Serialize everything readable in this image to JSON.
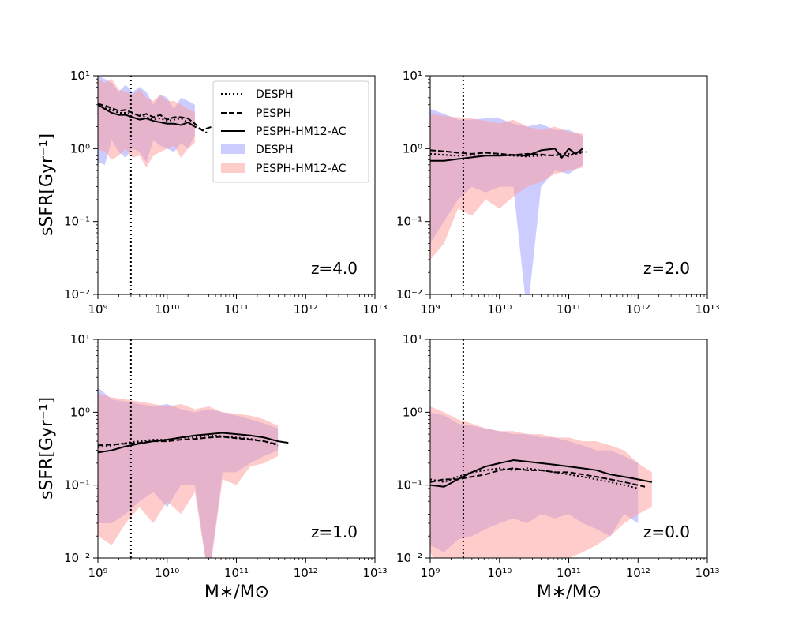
{
  "figure": {
    "ylabel": "sSFR[Gyr⁻¹]",
    "xlabel": "M∗/M⊙",
    "y_tick_labels": [
      "10¹",
      "10⁰",
      "10⁻¹",
      "10⁻²"
    ],
    "x_tick_labels": [
      "10⁹",
      "10¹⁰",
      "10¹¹",
      "10¹²",
      "10¹³"
    ],
    "legend": {
      "lines": [
        {
          "label": "DESPH",
          "style": "dotted"
        },
        {
          "label": "PESPH",
          "style": "dashed"
        },
        {
          "label": "PESPH-HM12-AC",
          "style": "solid"
        }
      ],
      "bands": [
        {
          "label": "DESPH",
          "color": "#9999ff"
        },
        {
          "label": "PESPH-HM12-AC",
          "color": "#ff9999"
        }
      ]
    },
    "colors": {
      "band_desph": "#9999ff",
      "band_pesph": "#ff9999",
      "line": "#000000"
    }
  },
  "chart_data": [
    {
      "type": "line",
      "panel_label": "z=4.0",
      "xscale": "log",
      "yscale": "log",
      "xlim": [
        1000000000.0,
        10000000000000.0
      ],
      "ylim": [
        0.01,
        10
      ],
      "vline_x": 3000000000.0,
      "legend": "top-right",
      "series": [
        {
          "name": "DESPH",
          "style": "dotted",
          "x": [
            9.0,
            9.1,
            9.2,
            9.3,
            9.4,
            9.5,
            9.6,
            9.7,
            9.8,
            9.9,
            10.0,
            10.1,
            10.2,
            10.3,
            10.4,
            10.5,
            10.6
          ],
          "y": [
            4.0,
            3.6,
            3.4,
            3.1,
            3.1,
            3.0,
            2.9,
            2.7,
            2.5,
            2.6,
            2.4,
            2.5,
            2.6,
            2.3,
            2.0,
            1.8,
            1.6
          ]
        },
        {
          "name": "PESPH",
          "style": "dashed",
          "x": [
            9.0,
            9.1,
            9.2,
            9.3,
            9.4,
            9.5,
            9.6,
            9.7,
            9.8,
            9.9,
            10.0,
            10.1,
            10.2,
            10.3,
            10.4,
            10.5,
            10.65
          ],
          "y": [
            4.1,
            3.9,
            3.6,
            3.3,
            3.4,
            3.1,
            2.8,
            3.0,
            2.7,
            2.9,
            2.5,
            2.7,
            2.7,
            2.6,
            2.2,
            1.8,
            2.0
          ]
        },
        {
          "name": "PESPH-HM12-AC",
          "style": "solid",
          "x": [
            9.0,
            9.1,
            9.2,
            9.3,
            9.4,
            9.5,
            9.6,
            9.7,
            9.8,
            9.9,
            10.0,
            10.1,
            10.2,
            10.3,
            10.4
          ],
          "y": [
            4.0,
            3.5,
            3.1,
            2.9,
            2.9,
            2.7,
            2.5,
            2.6,
            2.4,
            2.3,
            2.2,
            2.2,
            2.1,
            2.3,
            2.0
          ]
        },
        {
          "name": "DESPH band",
          "kind": "band",
          "x": [
            9.0,
            9.1,
            9.2,
            9.3,
            9.4,
            9.5,
            9.6,
            9.7,
            9.8,
            9.9,
            10.0,
            10.1,
            10.2,
            10.3,
            10.4
          ],
          "lower": [
            0.65,
            0.6,
            1.3,
            0.9,
            0.75,
            1.0,
            0.9,
            0.65,
            1.3,
            1.1,
            1.0,
            0.9,
            1.2,
            1.0,
            1.5
          ],
          "upper": [
            10.0,
            9.0,
            8.0,
            6.0,
            7.5,
            6.0,
            7.0,
            6.0,
            4.0,
            5.5,
            5.0,
            3.5,
            5.0,
            4.5,
            4.0
          ]
        },
        {
          "name": "PESPH-HM12-AC band",
          "kind": "band",
          "x": [
            9.0,
            9.1,
            9.2,
            9.3,
            9.4,
            9.5,
            9.6,
            9.7,
            9.8,
            9.9,
            10.0,
            10.1,
            10.2,
            10.3,
            10.4
          ],
          "lower": [
            1.0,
            0.9,
            0.7,
            0.8,
            1.0,
            0.75,
            0.8,
            0.55,
            0.8,
            0.9,
            1.0,
            1.1,
            0.75,
            1.0,
            1.2
          ],
          "upper": [
            9.0,
            8.0,
            9.0,
            6.5,
            6.0,
            5.5,
            6.5,
            5.0,
            4.5,
            5.5,
            4.5,
            4.5,
            4.0,
            3.5,
            3.2
          ]
        }
      ]
    },
    {
      "type": "line",
      "panel_label": "z=2.0",
      "xscale": "log",
      "yscale": "log",
      "xlim": [
        1000000000.0,
        10000000000000.0
      ],
      "ylim": [
        0.01,
        10
      ],
      "vline_x": 3000000000.0,
      "series": [
        {
          "name": "DESPH",
          "style": "dotted",
          "x": [
            9.0,
            9.2,
            9.4,
            9.6,
            9.8,
            10.0,
            10.2,
            10.4,
            10.6,
            10.8,
            10.9,
            11.0,
            11.1,
            11.2
          ],
          "y": [
            0.85,
            0.82,
            0.8,
            0.82,
            0.8,
            0.82,
            0.8,
            0.78,
            0.8,
            0.82,
            0.8,
            0.85,
            0.85,
            0.88
          ]
        },
        {
          "name": "PESPH",
          "style": "dashed",
          "x": [
            9.0,
            9.2,
            9.4,
            9.6,
            9.8,
            10.0,
            10.2,
            10.4,
            10.6,
            10.8,
            10.9,
            11.0,
            11.1,
            11.25
          ],
          "y": [
            0.95,
            0.92,
            0.88,
            0.85,
            0.88,
            0.85,
            0.82,
            0.85,
            0.83,
            0.8,
            0.85,
            0.78,
            0.9,
            0.9
          ]
        },
        {
          "name": "PESPH-HM12-AC",
          "style": "solid",
          "x": [
            9.0,
            9.2,
            9.4,
            9.6,
            9.8,
            10.0,
            10.2,
            10.4,
            10.6,
            10.8,
            10.9,
            11.0,
            11.1,
            11.2
          ],
          "y": [
            0.68,
            0.68,
            0.72,
            0.76,
            0.8,
            0.8,
            0.82,
            0.8,
            0.95,
            1.0,
            0.75,
            1.0,
            0.85,
            1.0
          ]
        },
        {
          "name": "DESPH band",
          "kind": "band",
          "x": [
            9.0,
            9.2,
            9.4,
            9.6,
            9.8,
            10.0,
            10.2,
            10.4,
            10.6,
            10.8,
            11.0,
            11.2
          ],
          "lower": [
            0.05,
            0.1,
            0.2,
            0.3,
            0.25,
            0.3,
            0.3,
            0.005,
            0.3,
            0.5,
            0.45,
            0.6
          ],
          "upper": [
            3.5,
            3.0,
            2.5,
            2.5,
            2.6,
            2.6,
            2.2,
            2.0,
            2.2,
            1.8,
            1.8,
            1.5
          ]
        },
        {
          "name": "PESPH-HM12-AC band",
          "kind": "band",
          "x": [
            9.0,
            9.2,
            9.4,
            9.6,
            9.8,
            10.0,
            10.2,
            10.4,
            10.6,
            10.8,
            11.0,
            11.2
          ],
          "lower": [
            0.03,
            0.05,
            0.15,
            0.12,
            0.2,
            0.15,
            0.22,
            0.3,
            0.35,
            0.45,
            0.5,
            0.55
          ],
          "upper": [
            3.0,
            2.8,
            2.7,
            2.6,
            2.4,
            2.2,
            2.5,
            2.0,
            1.8,
            2.0,
            1.7,
            1.6
          ]
        }
      ]
    },
    {
      "type": "line",
      "panel_label": "z=1.0",
      "xscale": "log",
      "yscale": "log",
      "xlim": [
        1000000000.0,
        10000000000000.0
      ],
      "ylim": [
        0.01,
        10
      ],
      "vline_x": 3000000000.0,
      "series": [
        {
          "name": "DESPH",
          "style": "dotted",
          "x": [
            9.0,
            9.2,
            9.4,
            9.6,
            9.8,
            10.0,
            10.2,
            10.4,
            10.6,
            10.8,
            11.0,
            11.2,
            11.4,
            11.6
          ],
          "y": [
            0.33,
            0.35,
            0.38,
            0.4,
            0.42,
            0.42,
            0.45,
            0.45,
            0.48,
            0.47,
            0.45,
            0.43,
            0.4,
            0.35
          ]
        },
        {
          "name": "PESPH",
          "style": "dashed",
          "x": [
            9.0,
            9.2,
            9.4,
            9.6,
            9.8,
            10.0,
            10.2,
            10.4,
            10.6,
            10.8,
            11.0,
            11.2,
            11.4,
            11.6
          ],
          "y": [
            0.35,
            0.36,
            0.37,
            0.38,
            0.4,
            0.4,
            0.42,
            0.43,
            0.45,
            0.46,
            0.44,
            0.42,
            0.4,
            0.36
          ]
        },
        {
          "name": "PESPH-HM12-AC",
          "style": "solid",
          "x": [
            9.0,
            9.2,
            9.4,
            9.6,
            9.8,
            10.0,
            10.2,
            10.4,
            10.6,
            10.8,
            11.0,
            11.2,
            11.4,
            11.6,
            11.75
          ],
          "y": [
            0.28,
            0.3,
            0.34,
            0.37,
            0.4,
            0.42,
            0.45,
            0.48,
            0.5,
            0.52,
            0.5,
            0.48,
            0.45,
            0.4,
            0.38
          ]
        },
        {
          "name": "DESPH band",
          "kind": "band",
          "x": [
            9.0,
            9.2,
            9.4,
            9.6,
            9.8,
            10.0,
            10.2,
            10.4,
            10.6,
            10.8,
            11.0,
            11.2,
            11.4,
            11.6
          ],
          "lower": [
            0.03,
            0.03,
            0.04,
            0.06,
            0.08,
            0.05,
            0.1,
            0.1,
            0.005,
            0.15,
            0.15,
            0.2,
            0.25,
            0.3
          ],
          "upper": [
            2.2,
            1.5,
            1.4,
            1.3,
            1.2,
            1.3,
            1.1,
            1.0,
            1.1,
            1.0,
            0.9,
            0.8,
            0.7,
            0.6
          ]
        },
        {
          "name": "PESPH-HM12-AC band",
          "kind": "band",
          "x": [
            9.0,
            9.2,
            9.4,
            9.6,
            9.8,
            10.0,
            10.2,
            10.4,
            10.6,
            10.8,
            11.0,
            11.2,
            11.4,
            11.6
          ],
          "lower": [
            0.02,
            0.015,
            0.03,
            0.05,
            0.03,
            0.06,
            0.04,
            0.08,
            0.005,
            0.12,
            0.1,
            0.18,
            0.2,
            0.25
          ],
          "upper": [
            1.8,
            1.6,
            1.5,
            1.4,
            1.3,
            1.2,
            1.3,
            1.1,
            1.2,
            1.0,
            0.95,
            0.9,
            0.8,
            0.65
          ]
        }
      ]
    },
    {
      "type": "line",
      "panel_label": "z=0.0",
      "xscale": "log",
      "yscale": "log",
      "xlim": [
        1000000000.0,
        10000000000000.0
      ],
      "ylim": [
        0.01,
        10
      ],
      "vline_x": 3000000000.0,
      "series": [
        {
          "name": "DESPH",
          "style": "dotted",
          "x": [
            9.0,
            9.2,
            9.4,
            9.6,
            9.8,
            10.0,
            10.2,
            10.4,
            10.6,
            10.8,
            11.0,
            11.2,
            11.4,
            11.6,
            11.8,
            12.0
          ],
          "y": [
            0.12,
            0.11,
            0.13,
            0.15,
            0.16,
            0.17,
            0.16,
            0.17,
            0.16,
            0.15,
            0.14,
            0.13,
            0.12,
            0.11,
            0.1,
            0.09
          ]
        },
        {
          "name": "PESPH",
          "style": "dashed",
          "x": [
            9.0,
            9.2,
            9.4,
            9.6,
            9.8,
            10.0,
            10.2,
            10.4,
            10.6,
            10.8,
            11.0,
            11.2,
            11.4,
            11.6,
            11.8,
            12.0,
            12.1
          ],
          "y": [
            0.11,
            0.12,
            0.12,
            0.13,
            0.14,
            0.16,
            0.17,
            0.16,
            0.16,
            0.15,
            0.15,
            0.14,
            0.13,
            0.12,
            0.11,
            0.1,
            0.095
          ]
        },
        {
          "name": "PESPH-HM12-AC",
          "style": "solid",
          "x": [
            9.0,
            9.2,
            9.4,
            9.6,
            9.8,
            10.0,
            10.2,
            10.4,
            10.6,
            10.8,
            11.0,
            11.2,
            11.4,
            11.6,
            11.8,
            12.0,
            12.2
          ],
          "y": [
            0.1,
            0.095,
            0.12,
            0.15,
            0.18,
            0.2,
            0.22,
            0.21,
            0.2,
            0.19,
            0.18,
            0.17,
            0.16,
            0.14,
            0.13,
            0.12,
            0.11
          ]
        },
        {
          "name": "DESPH band",
          "kind": "band",
          "x": [
            9.0,
            9.2,
            9.4,
            9.6,
            9.8,
            10.0,
            10.2,
            10.4,
            10.6,
            10.8,
            11.0,
            11.2,
            11.4,
            11.6,
            11.8,
            12.0
          ],
          "lower": [
            0.015,
            0.012,
            0.018,
            0.02,
            0.025,
            0.03,
            0.035,
            0.03,
            0.04,
            0.035,
            0.04,
            0.03,
            0.025,
            0.02,
            0.04,
            0.03
          ],
          "upper": [
            1.0,
            0.9,
            0.7,
            0.65,
            0.6,
            0.55,
            0.5,
            0.5,
            0.45,
            0.45,
            0.4,
            0.35,
            0.3,
            0.3,
            0.25,
            0.2
          ]
        },
        {
          "name": "PESPH-HM12-AC band",
          "kind": "band",
          "x": [
            9.0,
            9.2,
            9.4,
            9.6,
            9.8,
            10.0,
            10.2,
            10.4,
            10.6,
            10.8,
            11.0,
            11.2,
            11.4,
            11.6,
            11.8,
            12.0,
            12.2
          ],
          "lower": [
            0.012,
            0.005,
            0.008,
            0.005,
            0.01,
            0.005,
            0.008,
            0.005,
            0.006,
            0.005,
            0.01,
            0.012,
            0.015,
            0.02,
            0.03,
            0.04,
            0.05
          ],
          "upper": [
            1.2,
            1.0,
            0.8,
            0.7,
            0.6,
            0.55,
            0.55,
            0.5,
            0.5,
            0.45,
            0.45,
            0.4,
            0.4,
            0.35,
            0.3,
            0.2,
            0.15
          ]
        }
      ]
    }
  ]
}
